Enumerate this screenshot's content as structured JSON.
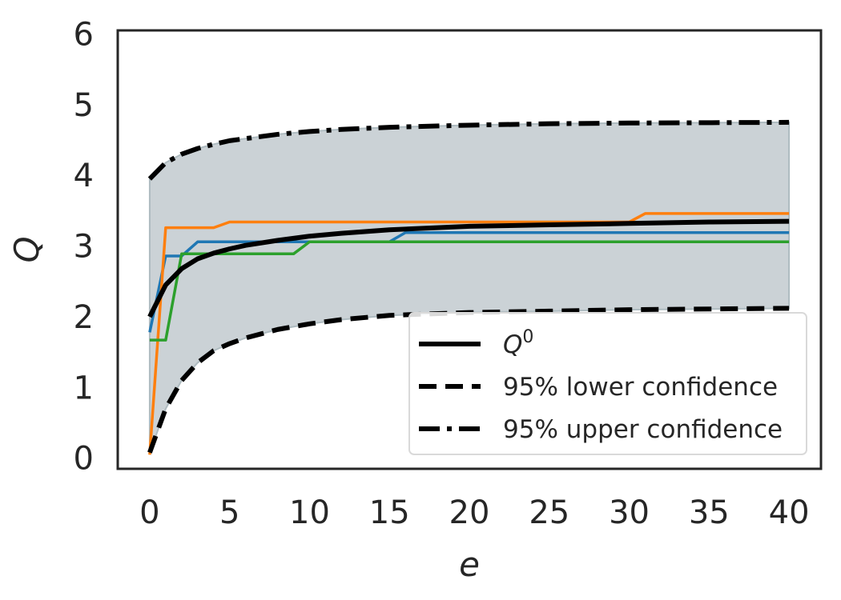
{
  "chart_data": {
    "type": "line",
    "title": "",
    "xlabel": "e",
    "ylabel": "Q",
    "xlim": [
      -2,
      42
    ],
    "ylim": [
      -0.15,
      6.05
    ],
    "xticks": [
      0,
      5,
      10,
      15,
      20,
      25,
      30,
      35,
      40
    ],
    "yticks": [
      0,
      1,
      2,
      3,
      4,
      5,
      6
    ],
    "xtick_labels": [
      "0",
      "5",
      "10",
      "15",
      "20",
      "25",
      "30",
      "35",
      "40"
    ],
    "ytick_labels": [
      "0",
      "1",
      "2",
      "3",
      "4",
      "5",
      "6"
    ],
    "grid": false,
    "legend_position": "lower-right",
    "legend": [
      {
        "label_base": "Q",
        "label_sup": "0",
        "style": "solid"
      },
      {
        "label": "95% lower confidence",
        "style": "dashed"
      },
      {
        "label": "95% upper confidence",
        "style": "dashdot"
      }
    ],
    "band": {
      "color": "#cbd2d6",
      "x": [
        0,
        1,
        2,
        3,
        4,
        5,
        6,
        7,
        8,
        10,
        12,
        15,
        20,
        25,
        30,
        35,
        40
      ],
      "lower": [
        0.08,
        0.7,
        1.1,
        1.35,
        1.52,
        1.62,
        1.7,
        1.76,
        1.82,
        1.9,
        1.96,
        2.02,
        2.06,
        2.08,
        2.1,
        2.11,
        2.12
      ],
      "upper": [
        3.95,
        4.18,
        4.3,
        4.38,
        4.44,
        4.49,
        4.52,
        4.55,
        4.58,
        4.62,
        4.65,
        4.68,
        4.71,
        4.73,
        4.74,
        4.745,
        4.75
      ]
    },
    "series": [
      {
        "style": "solid",
        "color": "#000000",
        "width": 6,
        "x": [
          0,
          1,
          2,
          3,
          4,
          5,
          6,
          8,
          10,
          12,
          15,
          20,
          25,
          30,
          35,
          40
        ],
        "y": [
          2.0,
          2.45,
          2.68,
          2.82,
          2.9,
          2.96,
          3.01,
          3.08,
          3.14,
          3.18,
          3.23,
          3.28,
          3.3,
          3.32,
          3.34,
          3.35
        ]
      },
      {
        "style": "dashed",
        "color": "#000000",
        "width": 6,
        "x": [
          0,
          1,
          2,
          3,
          4,
          5,
          6,
          7,
          8,
          10,
          12,
          15,
          20,
          25,
          30,
          35,
          40
        ],
        "y": [
          0.08,
          0.7,
          1.1,
          1.35,
          1.52,
          1.62,
          1.7,
          1.76,
          1.82,
          1.9,
          1.96,
          2.02,
          2.06,
          2.08,
          2.1,
          2.11,
          2.12
        ]
      },
      {
        "style": "dashdot",
        "color": "#000000",
        "width": 6,
        "x": [
          0,
          1,
          2,
          3,
          4,
          5,
          6,
          7,
          8,
          10,
          12,
          15,
          20,
          25,
          30,
          35,
          40
        ],
        "y": [
          3.95,
          4.18,
          4.3,
          4.38,
          4.44,
          4.49,
          4.52,
          4.55,
          4.58,
          4.62,
          4.65,
          4.68,
          4.71,
          4.73,
          4.74,
          4.745,
          4.75
        ]
      },
      {
        "style": "solid",
        "color": "#1f77b4",
        "width": 3.5,
        "x": [
          0,
          1,
          2,
          3,
          4,
          15,
          16,
          40
        ],
        "y": [
          1.78,
          2.86,
          2.86,
          3.06,
          3.06,
          3.06,
          3.19,
          3.19
        ]
      },
      {
        "style": "solid",
        "color": "#ff7f0e",
        "width": 3.5,
        "x": [
          0,
          1,
          4,
          5,
          30,
          31,
          40
        ],
        "y": [
          0.05,
          3.26,
          3.26,
          3.34,
          3.34,
          3.46,
          3.46
        ]
      },
      {
        "style": "solid",
        "color": "#2ca02c",
        "width": 3.5,
        "x": [
          0,
          1,
          2,
          9,
          10,
          40
        ],
        "y": [
          1.67,
          1.67,
          2.89,
          2.89,
          3.06,
          3.06
        ]
      }
    ]
  }
}
